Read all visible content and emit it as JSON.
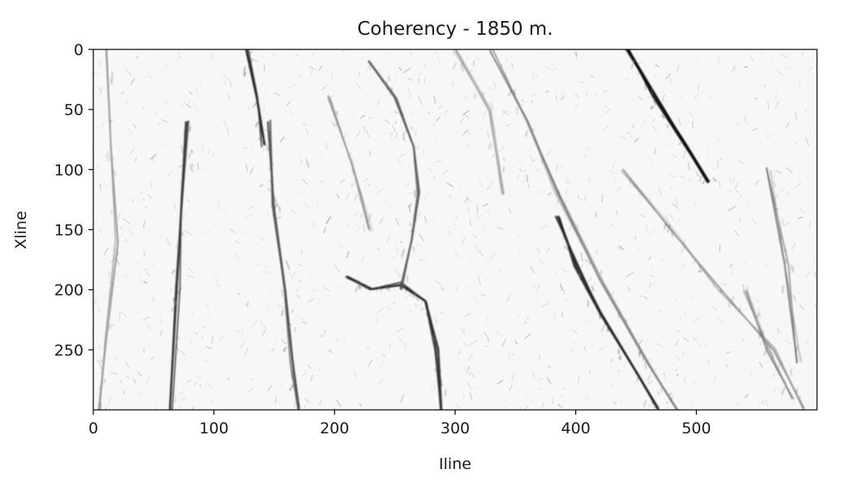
{
  "chart_data": {
    "type": "heatmap",
    "title": "Coherency - 1850 m.",
    "xlabel": "Iline",
    "ylabel": "Xline",
    "xlim": [
      0,
      600
    ],
    "ylim": [
      300,
      0
    ],
    "x_ticks": [
      0,
      100,
      200,
      300,
      400,
      500
    ],
    "x_tick_labels": [
      "0",
      "100",
      "200",
      "300",
      "400",
      "500"
    ],
    "y_ticks": [
      0,
      50,
      100,
      150,
      200,
      250
    ],
    "y_tick_labels": [
      "0",
      "50",
      "100",
      "150",
      "200",
      "250"
    ],
    "colormap": "grayscale, white = high coherency, black = low coherency",
    "grid": false,
    "legend": "none",
    "features": {
      "fault_lines": [
        {
          "points": [
            [
              442,
              0
            ],
            [
              465,
              40
            ],
            [
              490,
              80
            ],
            [
              510,
              110
            ]
          ],
          "strength": 0.95
        },
        {
          "points": [
            [
              385,
              140
            ],
            [
              400,
              180
            ],
            [
              420,
              220
            ],
            [
              450,
              270
            ],
            [
              470,
              300
            ]
          ],
          "strength": 0.85
        },
        {
          "points": [
            [
              330,
              0
            ],
            [
              360,
              60
            ],
            [
              385,
              120
            ],
            [
              420,
              190
            ],
            [
              460,
              260
            ],
            [
              485,
              300
            ]
          ],
          "strength": 0.45
        },
        {
          "points": [
            [
              440,
              100
            ],
            [
              480,
              150
            ],
            [
              520,
              200
            ],
            [
              565,
              250
            ],
            [
              590,
              300
            ]
          ],
          "strength": 0.35
        },
        {
          "points": [
            [
              78,
              60
            ],
            [
              75,
              120
            ],
            [
              70,
              200
            ],
            [
              65,
              300
            ]
          ],
          "strength": 0.75
        },
        {
          "points": [
            [
              145,
              60
            ],
            [
              150,
              130
            ],
            [
              160,
              200
            ],
            [
              165,
              260
            ],
            [
              170,
              300
            ]
          ],
          "strength": 0.65
        },
        {
          "points": [
            [
              128,
              0
            ],
            [
              135,
              40
            ],
            [
              140,
              80
            ]
          ],
          "strength": 0.8
        },
        {
          "points": [
            [
              210,
              190
            ],
            [
              230,
              200
            ],
            [
              255,
              195
            ],
            [
              275,
              210
            ],
            [
              285,
              250
            ],
            [
              290,
              300
            ]
          ],
          "strength": 0.8
        },
        {
          "points": [
            [
              230,
              10
            ],
            [
              250,
              40
            ],
            [
              265,
              80
            ],
            [
              270,
              120
            ],
            [
              262,
              160
            ],
            [
              255,
              200
            ]
          ],
          "strength": 0.6
        },
        {
          "points": [
            [
              10,
              0
            ],
            [
              15,
              80
            ],
            [
              20,
              160
            ],
            [
              10,
              240
            ],
            [
              5,
              300
            ]
          ],
          "strength": 0.35
        },
        {
          "points": [
            [
              195,
              40
            ],
            [
              215,
              100
            ],
            [
              230,
              150
            ]
          ],
          "strength": 0.35
        },
        {
          "points": [
            [
              560,
              100
            ],
            [
              575,
              180
            ],
            [
              585,
              260
            ]
          ],
          "strength": 0.45
        },
        {
          "points": [
            [
              300,
              0
            ],
            [
              330,
              50
            ],
            [
              340,
              120
            ]
          ],
          "strength": 0.3
        },
        {
          "points": [
            [
              540,
              200
            ],
            [
              560,
              250
            ],
            [
              580,
              290
            ]
          ],
          "strength": 0.4
        }
      ]
    }
  }
}
